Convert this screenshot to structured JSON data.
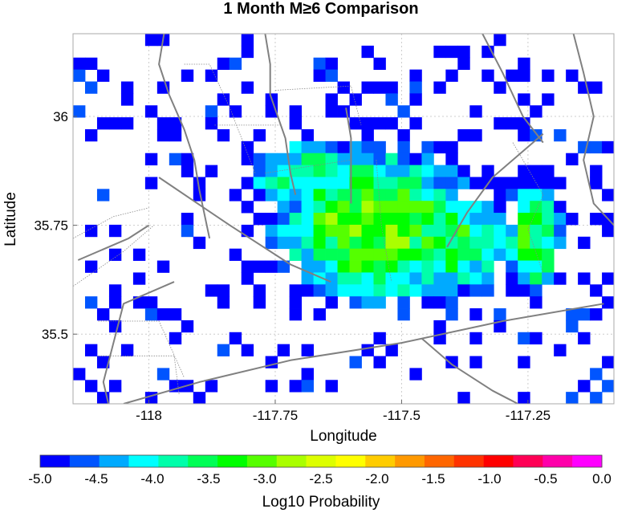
{
  "chart_data": {
    "type": "heatmap",
    "title": "1 Month M≥6 Comparison",
    "xlabel": "Longitude",
    "ylabel": "Latitude",
    "xlim": [
      -118.15,
      -117.08
    ],
    "ylim": [
      35.34,
      36.19
    ],
    "xticks": [
      -118,
      -117.75,
      -117.5,
      -117.25
    ],
    "xtick_labels": [
      "-118",
      "-117.75",
      "-117.5",
      "-117.25"
    ],
    "yticks": [
      35.5,
      35.75,
      36
    ],
    "ytick_labels": [
      "35.5",
      "35.75",
      "36"
    ],
    "grid": true,
    "colorbar": {
      "label": "Log10 Probability",
      "min": -5.0,
      "max": 0.0,
      "tick_values": [
        -5.0,
        -4.5,
        -4.0,
        -3.5,
        -3.0,
        -2.5,
        -2.0,
        -1.5,
        -1.0,
        -0.5,
        0.0
      ],
      "tick_labels": [
        "-5.0",
        "-4.5",
        "-4.0",
        "-3.5",
        "-3.0",
        "-2.5",
        "-2.0",
        "-1.5",
        "-1.0",
        "-0.5",
        "0.0"
      ],
      "colors": [
        "#0000ff",
        "#0055ff",
        "#00aaff",
        "#00ffff",
        "#00ffaa",
        "#00ff55",
        "#00ff00",
        "#55ff00",
        "#aaff00",
        "#ddff00",
        "#ffff00",
        "#ffcc00",
        "#ff9900",
        "#ff6600",
        "#ff3300",
        "#ff0000",
        "#ff0055",
        "#ff00aa",
        "#ff00ff"
      ]
    },
    "grid_shape": {
      "nx": 45,
      "ny": 31
    },
    "cell_size_deg": {
      "lon": 0.02378,
      "lat": 0.02742
    },
    "field_model": {
      "noise_seed": 12345,
      "components": [
        {
          "lon": -117.55,
          "lat": 35.75,
          "sigma_lon": 0.15,
          "sigma_lat": 0.13,
          "log10p": -3.0
        },
        {
          "lon": -117.4,
          "lat": 35.71,
          "sigma_lon": 0.1,
          "sigma_lat": 0.1,
          "log10p": -3.4
        },
        {
          "lon": -117.24,
          "lat": 35.72,
          "sigma_lon": 0.045,
          "sigma_lat": 0.1,
          "log10p": -3.25
        },
        {
          "lon": -117.68,
          "lat": 35.86,
          "sigma_lon": 0.1,
          "sigma_lat": 0.07,
          "log10p": -3.6
        }
      ],
      "background": -6.2,
      "min_shown": -5.0
    },
    "faults": [
      [
        [
          -117.98,
          35.86
        ],
        [
          -117.84,
          35.75
        ],
        [
          -117.72,
          35.66
        ],
        [
          -117.64,
          35.62
        ]
      ],
      [
        [
          -118.14,
          35.67
        ],
        [
          -118.04,
          35.72
        ],
        [
          -118.0,
          35.75
        ]
      ],
      [
        [
          -117.1,
          35.57
        ],
        [
          -117.3,
          35.53
        ],
        [
          -117.5,
          35.48
        ],
        [
          -117.72,
          35.44
        ],
        [
          -117.9,
          35.39
        ],
        [
          -118.05,
          35.34
        ]
      ],
      [
        [
          -117.46,
          35.49
        ],
        [
          -117.4,
          35.43
        ],
        [
          -117.32,
          35.37
        ],
        [
          -117.27,
          35.34
        ]
      ],
      [
        [
          -118.08,
          35.34
        ],
        [
          -118.09,
          35.39
        ],
        [
          -118.05,
          35.57
        ],
        [
          -117.95,
          35.62
        ]
      ],
      [
        [
          -117.97,
          36.19
        ],
        [
          -117.98,
          36.12
        ],
        [
          -117.96,
          36.05
        ],
        [
          -117.93,
          35.97
        ],
        [
          -117.91,
          35.9
        ],
        [
          -117.9,
          35.83
        ],
        [
          -117.88,
          35.72
        ]
      ],
      [
        [
          -117.77,
          36.19
        ],
        [
          -117.76,
          36.12
        ],
        [
          -117.76,
          36.05
        ],
        [
          -117.73,
          35.95
        ],
        [
          -117.72,
          35.87
        ],
        [
          -117.71,
          35.82
        ]
      ],
      [
        [
          -117.61,
          36.02
        ],
        [
          -117.6,
          35.95
        ],
        [
          -117.6,
          35.8
        ]
      ],
      [
        [
          -117.34,
          36.19
        ],
        [
          -117.3,
          36.1
        ],
        [
          -117.26,
          36.0
        ],
        [
          -117.22,
          35.94
        ]
      ],
      [
        [
          -117.16,
          36.19
        ],
        [
          -117.14,
          36.1
        ],
        [
          -117.12,
          36.0
        ],
        [
          -117.14,
          35.9
        ],
        [
          -117.12,
          35.8
        ],
        [
          -117.08,
          35.75
        ]
      ],
      [
        [
          -117.41,
          35.7
        ],
        [
          -117.37,
          35.78
        ],
        [
          -117.32,
          35.86
        ],
        [
          -117.22,
          35.96
        ]
      ]
    ],
    "boundaries": [
      [
        [
          -118.1,
          35.45
        ],
        [
          -117.95,
          35.45
        ],
        [
          -117.94,
          35.36
        ]
      ],
      [
        [
          -118.1,
          35.53
        ],
        [
          -117.98,
          35.53
        ],
        [
          -117.93,
          35.4
        ]
      ],
      [
        [
          -117.93,
          36.12
        ],
        [
          -117.88,
          36.12
        ],
        [
          -117.84,
          36.02
        ],
        [
          -117.79,
          35.87
        ]
      ],
      [
        [
          -117.75,
          36.06
        ],
        [
          -117.6,
          36.07
        ],
        [
          -117.58,
          35.98
        ]
      ],
      [
        [
          -117.87,
          35.98
        ],
        [
          -117.74,
          35.98
        ]
      ],
      [
        [
          -117.77,
          35.87
        ],
        [
          -117.6,
          35.9
        ]
      ],
      [
        [
          -118.15,
          35.61
        ],
        [
          -118.05,
          35.69
        ],
        [
          -117.99,
          35.75
        ]
      ],
      [
        [
          -118.15,
          35.72
        ],
        [
          -118.07,
          35.77
        ],
        [
          -118.0,
          35.79
        ]
      ],
      [
        [
          -117.28,
          35.94
        ],
        [
          -117.22,
          35.82
        ],
        [
          -117.25,
          35.74
        ],
        [
          -117.22,
          35.64
        ]
      ],
      [
        [
          -117.55,
          35.9
        ],
        [
          -117.54,
          35.75
        ],
        [
          -117.52,
          35.62
        ]
      ]
    ]
  }
}
